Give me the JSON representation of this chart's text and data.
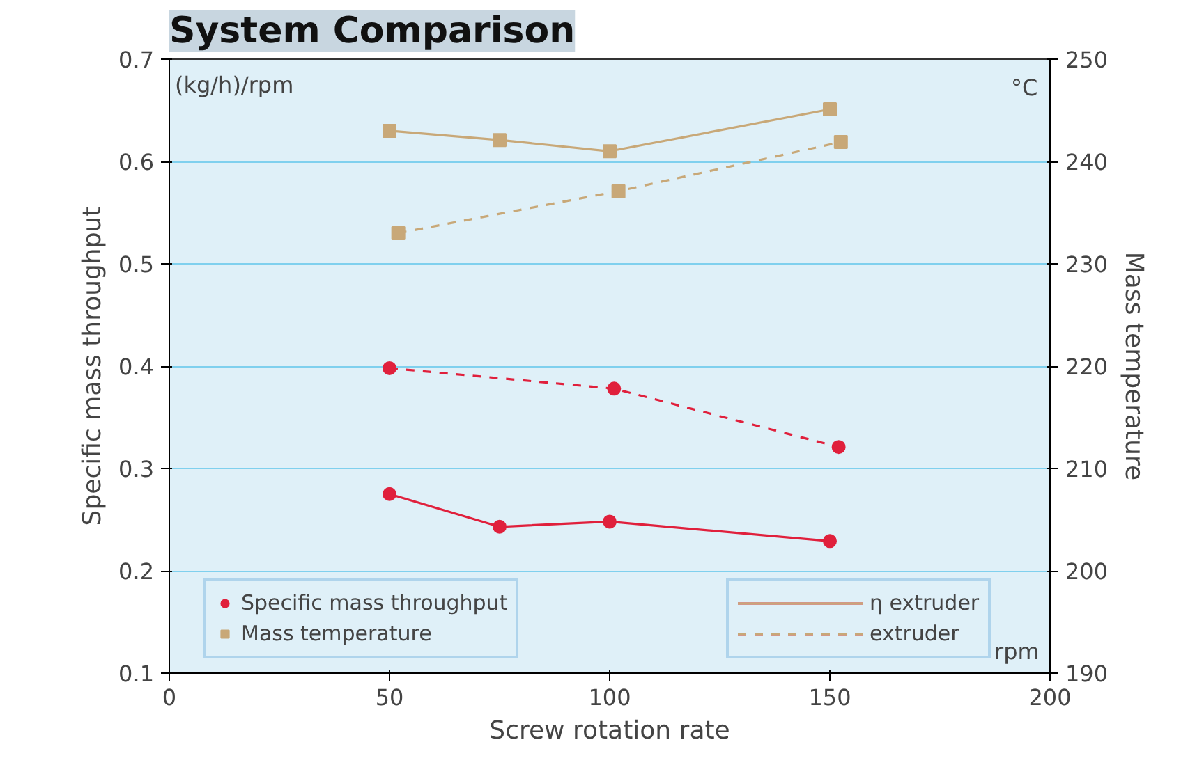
{
  "chart_data": {
    "type": "line",
    "title": "System Comparison",
    "xlabel": "Screw rotation rate",
    "ylabel": "Specific mass throughput",
    "y2label": "Mass temperature",
    "xlim": [
      0,
      200
    ],
    "xticks": [
      0,
      50,
      100,
      150,
      200
    ],
    "ylim": [
      0.1,
      0.7
    ],
    "yticks": [
      0.1,
      0.2,
      0.3,
      0.4,
      0.5,
      0.6,
      0.7
    ],
    "y2lim": [
      190,
      250
    ],
    "y2ticks": [
      190,
      200,
      210,
      220,
      230,
      240,
      250
    ],
    "grid": "y",
    "legend": "bottom",
    "annotations": [
      "(kg/h)/rpm",
      "°C",
      "rpm",
      "η extruder",
      "extruder"
    ],
    "series": [
      {
        "name": "Specific mass throughput",
        "color": "#e0203c",
        "marker": "circle",
        "line_style": "solid",
        "x": [
          50,
          75,
          100,
          150
        ],
        "values": [
          0.275,
          0.243,
          0.248,
          0.229
        ]
      },
      {
        "color": "#e0203c",
        "marker": "circle",
        "line_style": "dashed",
        "x": [
          50,
          101,
          152
        ],
        "values": [
          0.398,
          0.378,
          0.321
        ]
      },
      {
        "name": "Mass temperature",
        "color": "#c8a878",
        "marker": "square",
        "line_style": "solid",
        "axis": "y2",
        "x": [
          50,
          75,
          100,
          150
        ],
        "values": [
          243.0,
          242.1,
          241.0,
          245.1
        ]
      },
      {
        "color": "#c8a878",
        "marker": "square",
        "line_style": "dashed",
        "axis": "y2",
        "x": [
          52,
          102,
          152.5
        ],
        "values": [
          233.0,
          237.1,
          241.9
        ]
      }
    ]
  }
}
